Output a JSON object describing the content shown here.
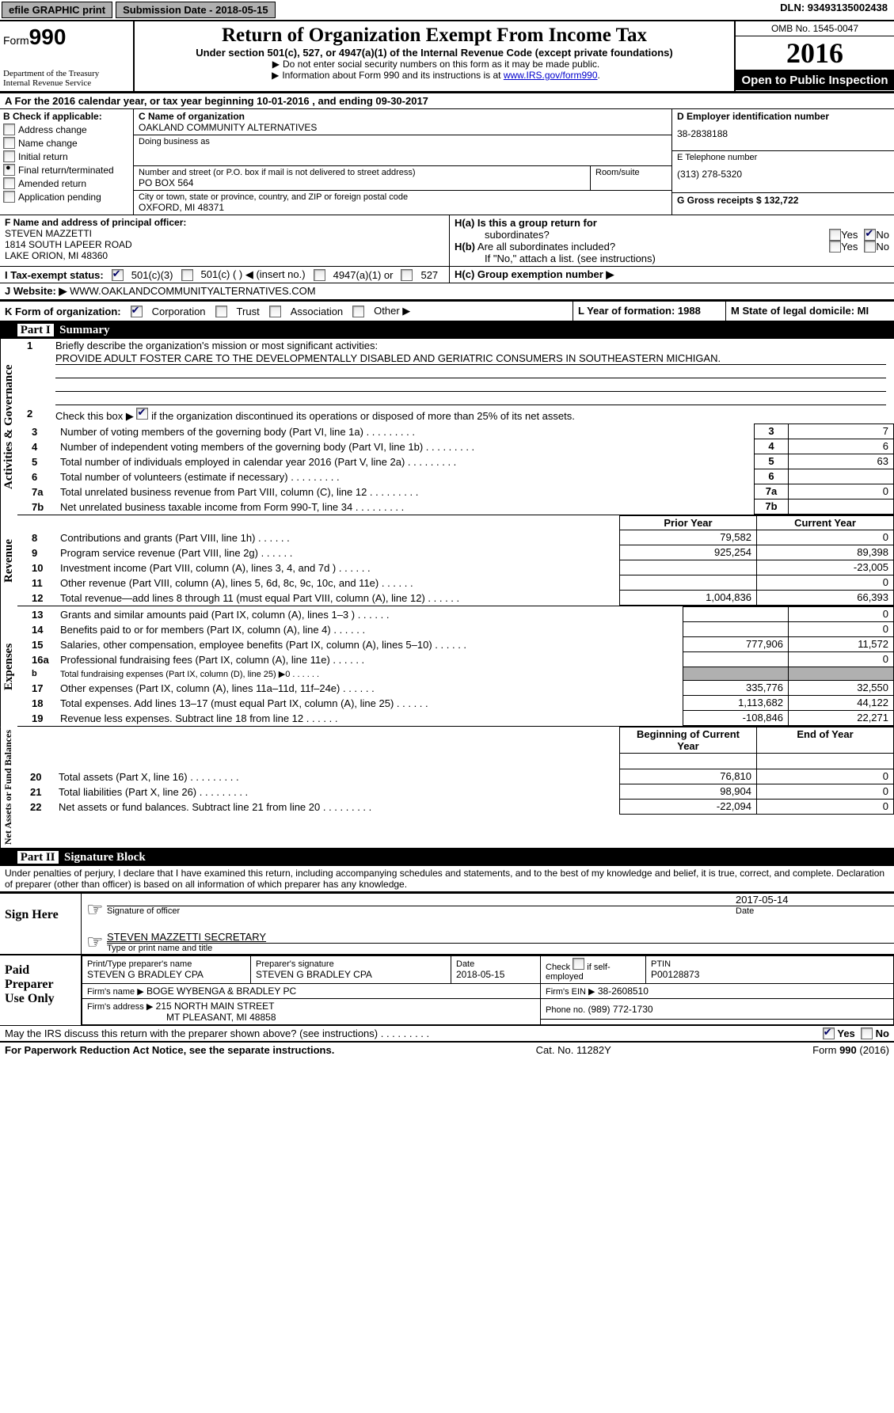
{
  "topbar": {
    "efile": "efile GRAPHIC print",
    "submission_label": "Submission Date - 2018-05-15",
    "dln": "DLN: 93493135002438"
  },
  "header": {
    "form_prefix": "Form",
    "form_number": "990",
    "dept1": "Department of the Treasury",
    "dept2": "Internal Revenue Service",
    "title": "Return of Organization Exempt From Income Tax",
    "subtitle": "Under section 501(c), 527, or 4947(a)(1) of the Internal Revenue Code (except private foundations)",
    "note1": "Do not enter social security numbers on this form as it may be made public.",
    "note2_pre": "Information about Form 990 and its instructions is at ",
    "note2_link": "www.IRS.gov/form990",
    "omb": "OMB No. 1545-0047",
    "year": "2016",
    "inspection": "Open to Public Inspection"
  },
  "sectionA": "A  For the 2016 calendar year, or tax year beginning 10-01-2016   , and ending 09-30-2017",
  "B": {
    "header": "B Check if applicable:",
    "items": [
      "Address change",
      "Name change",
      "Initial return",
      "Final return/terminated",
      "Amended return",
      "Application pending"
    ],
    "checked_idx": 3
  },
  "C": {
    "name_label": "C Name of organization",
    "name": "OAKLAND COMMUNITY ALTERNATIVES",
    "dba_label": "Doing business as",
    "street_label": "Number and street (or P.O. box if mail is not delivered to street address)",
    "room_label": "Room/suite",
    "street": "PO BOX 564",
    "city_label": "City or town, state or province, country, and ZIP or foreign postal code",
    "city": "OXFORD, MI  48371"
  },
  "D": {
    "label": "D Employer identification number",
    "value": "38-2838188"
  },
  "E": {
    "label": "E Telephone number",
    "value": "(313) 278-5320"
  },
  "G": {
    "label": "G Gross receipts $ 132,722"
  },
  "F": {
    "label": "F  Name and address of principal officer:",
    "name": "STEVEN MAZZETTI",
    "addr1": "1814 SOUTH LAPEER ROAD",
    "addr2": "LAKE ORION, MI  48360"
  },
  "H": {
    "a": "H(a)  Is this a group return for",
    "a2": "subordinates?",
    "b": "H(b)  Are all subordinates included?",
    "bnote": "If \"No,\" attach a list. (see instructions)",
    "c": "H(c)  Group exemption number ▶",
    "yes": "Yes",
    "no": "No"
  },
  "I": {
    "label": "I  Tax-exempt status:",
    "opt1": "501(c)(3)",
    "opt2": "501(c) (  ) ◀ (insert no.)",
    "opt3": "4947(a)(1) or",
    "opt4": "527"
  },
  "J": {
    "label": "J  Website: ▶",
    "value": "WWW.OAKLANDCOMMUNITYALTERNATIVES.COM"
  },
  "K": {
    "label": "K Form of organization:",
    "opts": [
      "Corporation",
      "Trust",
      "Association",
      "Other ▶"
    ]
  },
  "L": {
    "label": "L Year of formation: 1988"
  },
  "M": {
    "label": "M State of legal domicile: MI"
  },
  "part1": {
    "header": "Part I",
    "title": "Summary",
    "vert1": "Activities & Governance",
    "vert2": "Revenue",
    "vert3": "Expenses",
    "vert4": "Net Assets or Fund Balances",
    "line1": "Briefly describe the organization's mission or most significant activities:",
    "mission": "PROVIDE ADULT FOSTER CARE TO THE DEVELOPMENTALLY DISABLED AND GERIATRIC CONSUMERS IN SOUTHEASTERN MICHIGAN.",
    "line2": "Check this box ▶         if the organization discontinued its operations or disposed of more than 25% of its net assets.",
    "rows_gov": [
      {
        "n": "3",
        "t": "Number of voting members of the governing body (Part VI, line 1a)",
        "v": "7"
      },
      {
        "n": "4",
        "t": "Number of independent voting members of the governing body (Part VI, line 1b)",
        "v": "6"
      },
      {
        "n": "5",
        "t": "Total number of individuals employed in calendar year 2016 (Part V, line 2a)",
        "v": "63"
      },
      {
        "n": "6",
        "t": "Total number of volunteers (estimate if necessary)",
        "v": ""
      },
      {
        "n": "7a",
        "t": "Total unrelated business revenue from Part VIII, column (C), line 12",
        "v": "0"
      },
      {
        "n": "7b",
        "t": "Net unrelated business taxable income from Form 990-T, line 34",
        "v": ""
      }
    ],
    "col_prior": "Prior Year",
    "col_current": "Current Year",
    "rows_rev": [
      {
        "n": "8",
        "t": "Contributions and grants (Part VIII, line 1h)",
        "p": "79,582",
        "c": "0"
      },
      {
        "n": "9",
        "t": "Program service revenue (Part VIII, line 2g)",
        "p": "925,254",
        "c": "89,398"
      },
      {
        "n": "10",
        "t": "Investment income (Part VIII, column (A), lines 3, 4, and 7d )",
        "p": "",
        "c": "-23,005"
      },
      {
        "n": "11",
        "t": "Other revenue (Part VIII, column (A), lines 5, 6d, 8c, 9c, 10c, and 11e)",
        "p": "",
        "c": "0"
      },
      {
        "n": "12",
        "t": "Total revenue—add lines 8 through 11 (must equal Part VIII, column (A), line 12)",
        "p": "1,004,836",
        "c": "66,393"
      }
    ],
    "rows_exp": [
      {
        "n": "13",
        "t": "Grants and similar amounts paid (Part IX, column (A), lines 1–3 )",
        "p": "",
        "c": "0"
      },
      {
        "n": "14",
        "t": "Benefits paid to or for members (Part IX, column (A), line 4)",
        "p": "",
        "c": "0"
      },
      {
        "n": "15",
        "t": "Salaries, other compensation, employee benefits (Part IX, column (A), lines 5–10)",
        "p": "777,906",
        "c": "11,572"
      },
      {
        "n": "16a",
        "t": "Professional fundraising fees (Part IX, column (A), line 11e)",
        "p": "",
        "c": "0"
      },
      {
        "n": "b",
        "t": "Total fundraising expenses (Part IX, column (D), line 25) ▶0",
        "p": "SHADED",
        "c": "SHADED"
      },
      {
        "n": "17",
        "t": "Other expenses (Part IX, column (A), lines 11a–11d, 11f–24e)",
        "p": "335,776",
        "c": "32,550"
      },
      {
        "n": "18",
        "t": "Total expenses. Add lines 13–17 (must equal Part IX, column (A), line 25)",
        "p": "1,113,682",
        "c": "44,122"
      },
      {
        "n": "19",
        "t": "Revenue less expenses. Subtract line 18 from line 12",
        "p": "-108,846",
        "c": "22,271"
      }
    ],
    "col_begin": "Beginning of Current Year",
    "col_end": "End of Year",
    "rows_net": [
      {
        "n": "20",
        "t": "Total assets (Part X, line 16)",
        "p": "76,810",
        "c": "0"
      },
      {
        "n": "21",
        "t": "Total liabilities (Part X, line 26)",
        "p": "98,904",
        "c": "0"
      },
      {
        "n": "22",
        "t": "Net assets or fund balances. Subtract line 21 from line 20",
        "p": "-22,094",
        "c": "0"
      }
    ]
  },
  "part2": {
    "header": "Part II",
    "title": "Signature Block",
    "perjury": "Under penalties of perjury, I declare that I have examined this return, including accompanying schedules and statements, and to the best of my knowledge and belief, it is true, correct, and complete. Declaration of preparer (other than officer) is based on all information of which preparer has any knowledge.",
    "sign_here": "Sign Here",
    "sig_date": "2017-05-14",
    "sig_officer": "Signature of officer",
    "sig_date_label": "Date",
    "officer_name": "STEVEN MAZZETTI SECRETARY",
    "type_name": "Type or print name and title",
    "paid": "Paid Preparer Use Only",
    "prep_name_label": "Print/Type preparer's name",
    "prep_name": "STEVEN G BRADLEY CPA",
    "prep_sig_label": "Preparer's signature",
    "prep_sig": "STEVEN G BRADLEY CPA",
    "prep_date_label": "Date",
    "prep_date": "2018-05-15",
    "check_self": "Check         if self-employed",
    "ptin_label": "PTIN",
    "ptin": "P00128873",
    "firm_name_label": "Firm's name      ▶",
    "firm_name": "BOGE WYBENGA & BRADLEY PC",
    "firm_ein_label": "Firm's EIN ▶",
    "firm_ein": "38-2608510",
    "firm_addr_label": "Firm's address ▶",
    "firm_addr1": "215 NORTH MAIN STREET",
    "firm_addr2": "MT PLEASANT, MI  48858",
    "phone_label": "Phone no.",
    "phone": "(989) 772-1730",
    "discuss": "May the IRS discuss this return with the preparer shown above? (see instructions)"
  },
  "footer": {
    "paperwork": "For Paperwork Reduction Act Notice, see the separate instructions.",
    "cat": "Cat. No. 11282Y",
    "form": "Form 990 (2016)"
  }
}
